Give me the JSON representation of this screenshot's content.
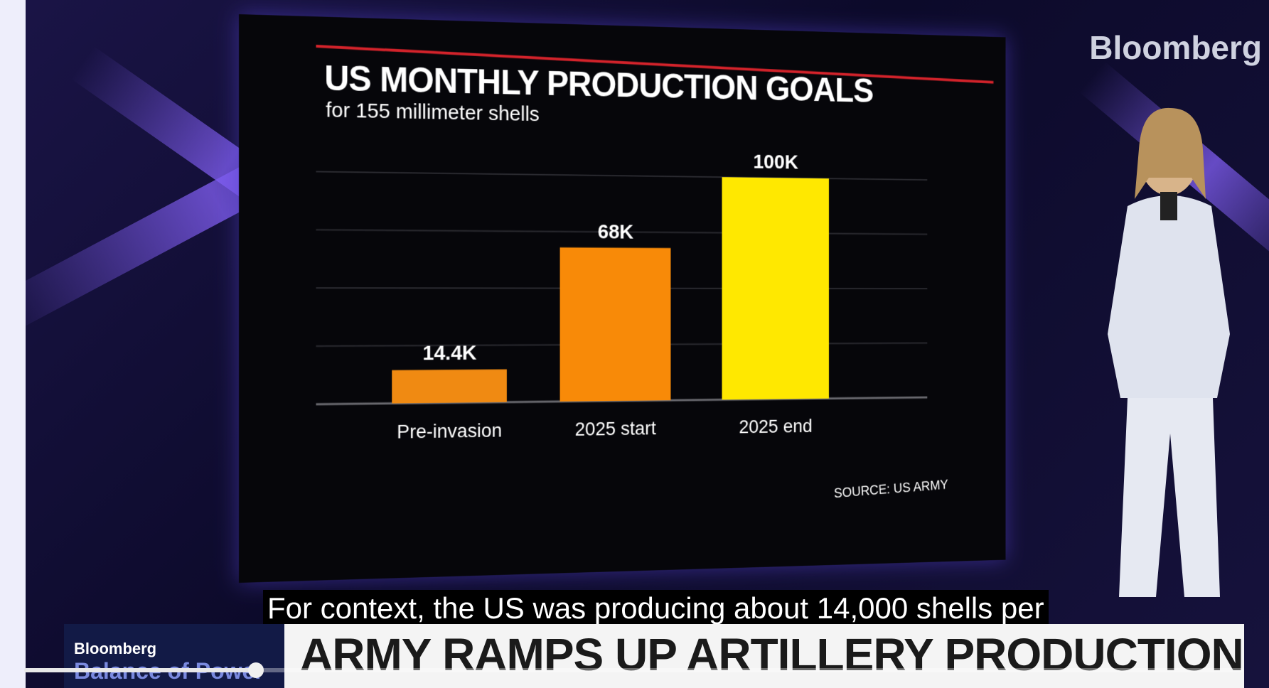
{
  "brand": "Bloomberg",
  "chart_data": {
    "type": "bar",
    "title": "US MONTHLY PRODUCTION GOALS",
    "subtitle": "for 155 millimeter shells",
    "categories": [
      "Pre-invasion",
      "2025 start",
      "2025 end"
    ],
    "values": [
      14400,
      68000,
      100000
    ],
    "data_labels": [
      "14.4K",
      "68K",
      "100K"
    ],
    "colors": [
      "#f08a12",
      "#f88a08",
      "#ffe800"
    ],
    "ylim": [
      0,
      100000
    ],
    "grid": true,
    "source": "SOURCE: US ARMY"
  },
  "caption": "For context, the US was producing about 14,000 shells per",
  "lower_third": {
    "show_brand": "Bloomberg",
    "show_name": "Balance of Power",
    "headline": "ARMY RAMPS UP ARTILLERY PRODUCTION"
  },
  "player": {
    "progress": 0.19
  }
}
